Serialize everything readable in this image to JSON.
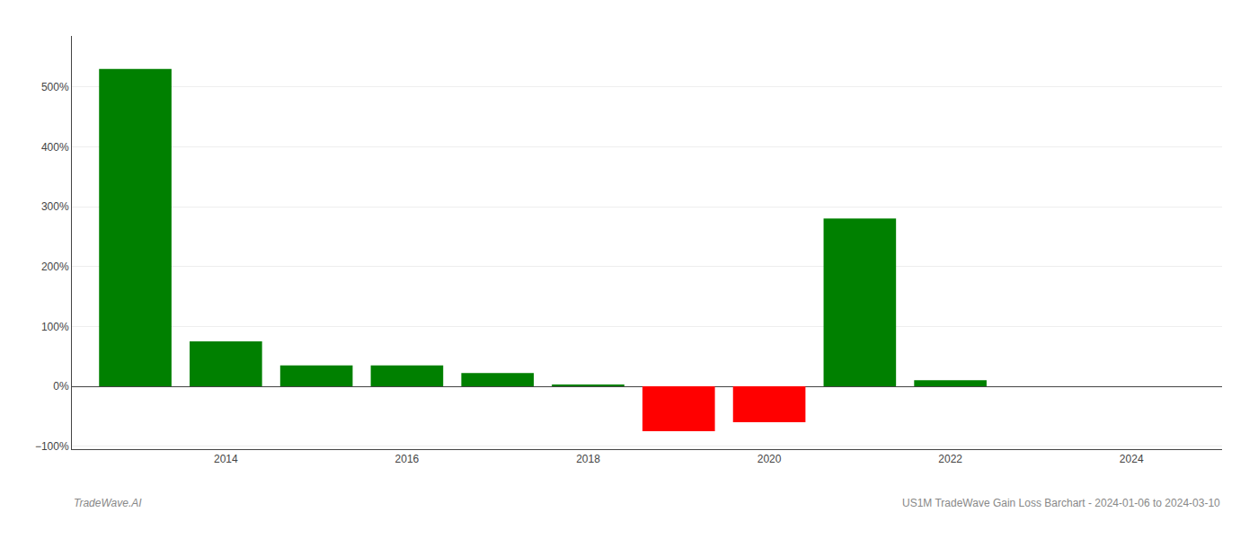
{
  "chart_data": {
    "type": "bar",
    "x": [
      2013,
      2014,
      2015,
      2016,
      2017,
      2018,
      2019,
      2020,
      2021,
      2022,
      2023
    ],
    "values": [
      5.3,
      0.75,
      0.35,
      0.35,
      0.22,
      0.02,
      -0.75,
      -0.6,
      2.8,
      0.1,
      0.0
    ],
    "colors": [
      "#008000",
      "#008000",
      "#008000",
      "#008000",
      "#008000",
      "#008000",
      "#ff0000",
      "#ff0000",
      "#008000",
      "#008000",
      "#008000"
    ],
    "xlim": [
      2012.3,
      2025.0
    ],
    "xticks": [
      2014,
      2016,
      2018,
      2020,
      2022,
      2024
    ],
    "ylim": [
      -1.05,
      5.85
    ],
    "yticks": [
      {
        "value": -1.0,
        "label": "−100%"
      },
      {
        "value": 0.0,
        "label": "0%"
      },
      {
        "value": 1.0,
        "label": "100%"
      },
      {
        "value": 2.0,
        "label": "200%"
      },
      {
        "value": 3.0,
        "label": "300%"
      },
      {
        "value": 4.0,
        "label": "400%"
      },
      {
        "value": 5.0,
        "label": "500%"
      }
    ],
    "grid": true,
    "annotations": [
      "TradeWave.AI",
      "US1M TradeWave Gain Loss Barchart - 2024-01-06 to 2024-03-10"
    ]
  }
}
